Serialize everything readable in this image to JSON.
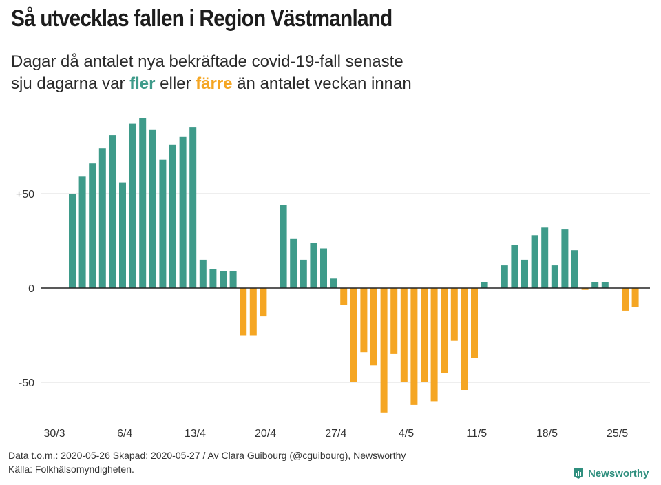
{
  "title": "Så utvecklas fallen i Region Västmanland",
  "subtitle": {
    "line1": "Dagar då antalet nya bekräftade covid-19-fall senaste",
    "line2_pre": "sju dagarna var ",
    "more_word": "fler",
    "line2_mid": " eller ",
    "fewer_word": "färre",
    "line2_post": " än antalet veckan innan"
  },
  "colors": {
    "positive": "#3e9b8a",
    "negative": "#f5a623",
    "grid": "#dddddd",
    "zero": "#222222"
  },
  "chart_data": {
    "type": "bar",
    "title": "Så utvecklas fallen i Region Västmanland",
    "xlabel": "",
    "ylabel": "",
    "ylim": [
      -70,
      95
    ],
    "yticks": [
      50,
      0,
      -50
    ],
    "ytick_labels": [
      "+50",
      "0",
      "-50"
    ],
    "x_tick_labels": [
      "30/3",
      "6/4",
      "13/4",
      "20/4",
      "27/4",
      "4/5",
      "11/5",
      "18/5",
      "25/5"
    ],
    "x_tick_day_index": [
      0,
      7,
      14,
      21,
      28,
      35,
      42,
      49,
      56
    ],
    "start_date": "2020-03-30",
    "values": [
      50,
      59,
      66,
      74,
      81,
      56,
      87,
      90,
      84,
      68,
      76,
      80,
      85,
      15,
      10,
      9,
      9,
      -25,
      -25,
      -15,
      0,
      44,
      26,
      15,
      24,
      21,
      5,
      -9,
      -50,
      -34,
      -41,
      -66,
      -35,
      -50,
      -62,
      -50,
      -60,
      -45,
      -28,
      -54,
      -37,
      3,
      0,
      12,
      23,
      15,
      28,
      32,
      12,
      31,
      20,
      -1,
      3,
      3,
      0,
      -12,
      -10
    ]
  },
  "footer": {
    "line1": "Data t.o.m.: 2020-05-26 Skapad: 2020-05-27 / Av Clara Guibourg (@cguibourg), Newsworthy",
    "line2": "Källa: Folkhälsomyndigheten."
  },
  "logo": {
    "text": "Newsworthy",
    "icon": "bar-chart-shield-icon"
  }
}
